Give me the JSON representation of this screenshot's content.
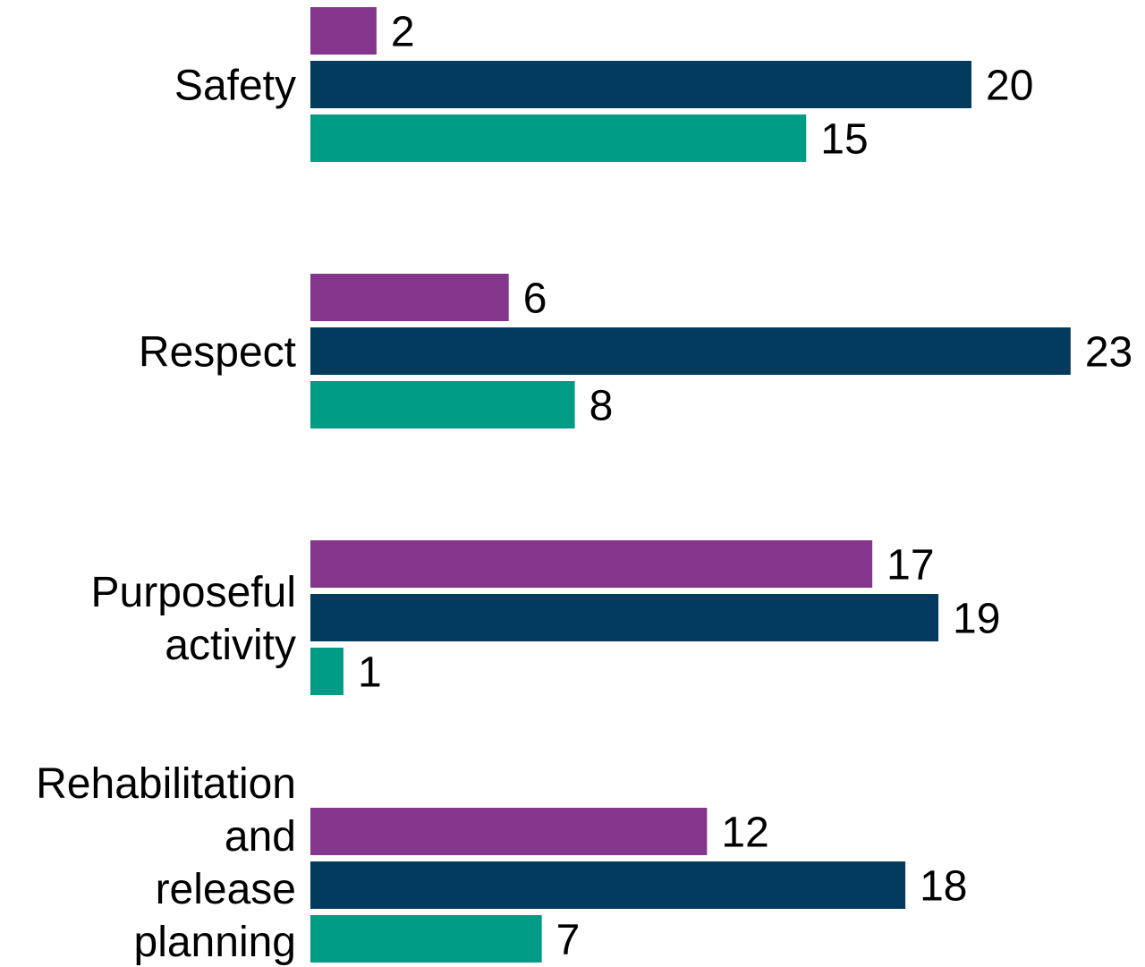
{
  "chart_data": {
    "type": "bar",
    "orientation": "horizontal",
    "categories": [
      [
        "Safety"
      ],
      [
        "Respect"
      ],
      [
        "Purposeful",
        "activity"
      ],
      [
        "Rehabilitation",
        "and",
        "release",
        "planning"
      ]
    ],
    "series": [
      {
        "values": [
          2,
          6,
          17,
          12
        ],
        "color": "#84358c"
      },
      {
        "values": [
          20,
          23,
          19,
          18
        ],
        "color": "#033b5f"
      },
      {
        "values": [
          15,
          8,
          1,
          7
        ],
        "color": "#009c85"
      }
    ],
    "xlim": [
      0,
      23
    ],
    "grid": false,
    "legend": "none",
    "data_labels": true
  }
}
